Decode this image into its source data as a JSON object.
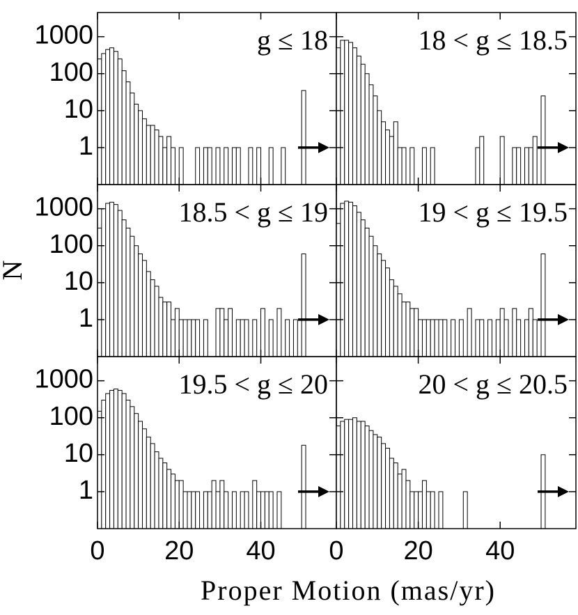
{
  "xlabel": "Proper Motion (mas/yr)",
  "ylabel": "N",
  "chart_data": [
    {
      "type": "histogram",
      "title": "g ≤ 18",
      "log_y": true,
      "color": "#ffffff",
      "bins": [
        0,
        1,
        2,
        3,
        4,
        5,
        6,
        7,
        8,
        9,
        10,
        11,
        12,
        13,
        14,
        15,
        16,
        17,
        18,
        19,
        20,
        21,
        22,
        23,
        24,
        25,
        26,
        27,
        28,
        29,
        30,
        31,
        32,
        33,
        34,
        35,
        36,
        37,
        38,
        39,
        40,
        41,
        42,
        43,
        44,
        45,
        46,
        47,
        48,
        49,
        50,
        51
      ],
      "values": [
        250,
        350,
        450,
        500,
        400,
        250,
        120,
        60,
        30,
        15,
        10,
        6,
        4,
        4,
        3,
        2,
        1,
        2,
        1,
        0,
        1,
        0,
        0,
        0,
        1,
        0,
        1,
        1,
        0,
        1,
        0,
        1,
        0,
        1,
        1,
        0,
        0,
        1,
        0,
        1,
        0,
        0,
        1,
        0,
        0,
        1,
        0,
        0,
        0,
        0,
        35
      ],
      "xlim": [
        0,
        58.5
      ],
      "ylim": [
        0.1,
        4500
      ],
      "xticks": [
        0,
        20,
        40
      ],
      "yticks": [
        1,
        10,
        100,
        1000
      ]
    },
    {
      "type": "histogram",
      "title": "18 < g ≤ 18.5",
      "log_y": true,
      "color": "#ffffff",
      "bins": [
        0,
        1,
        2,
        3,
        4,
        5,
        6,
        7,
        8,
        9,
        10,
        11,
        12,
        13,
        14,
        15,
        16,
        17,
        18,
        19,
        20,
        21,
        22,
        23,
        24,
        25,
        26,
        27,
        28,
        29,
        30,
        31,
        32,
        33,
        34,
        35,
        36,
        37,
        38,
        39,
        40,
        41,
        42,
        43,
        44,
        45,
        46,
        47,
        48,
        49,
        50,
        51
      ],
      "values": [
        500,
        800,
        800,
        700,
        500,
        300,
        180,
        100,
        50,
        25,
        10,
        5,
        3,
        2,
        5,
        1,
        1,
        0,
        1,
        0,
        0,
        1,
        0,
        1,
        0,
        0,
        0,
        0,
        0,
        0,
        0,
        0,
        0,
        0,
        1,
        2,
        0,
        0,
        0,
        0,
        2,
        0,
        0,
        1,
        1,
        0,
        1,
        1,
        2,
        0,
        25
      ],
      "xlim": [
        0,
        58.5
      ],
      "ylim": [
        0.1,
        4500
      ],
      "xticks": [
        0,
        20,
        40
      ],
      "yticks": [
        1,
        10,
        100,
        1000
      ]
    },
    {
      "type": "histogram",
      "title": "18.5 < g ≤ 19",
      "log_y": true,
      "color": "#ffffff",
      "bins": [
        0,
        1,
        2,
        3,
        4,
        5,
        6,
        7,
        8,
        9,
        10,
        11,
        12,
        13,
        14,
        15,
        16,
        17,
        18,
        19,
        20,
        21,
        22,
        23,
        24,
        25,
        26,
        27,
        28,
        29,
        30,
        31,
        32,
        33,
        34,
        35,
        36,
        37,
        38,
        39,
        40,
        41,
        42,
        43,
        44,
        45,
        46,
        47,
        48,
        49,
        50,
        51
      ],
      "values": [
        300,
        1000,
        1400,
        1500,
        1300,
        900,
        500,
        300,
        180,
        100,
        60,
        40,
        20,
        12,
        8,
        4,
        3,
        3,
        1,
        2,
        1,
        1,
        1,
        1,
        1,
        0,
        1,
        0,
        0,
        2,
        2,
        1,
        2,
        0,
        1,
        1,
        1,
        0,
        1,
        0,
        2,
        0,
        1,
        0,
        2,
        0,
        1,
        0,
        1,
        0,
        60
      ],
      "xlim": [
        0,
        58.5
      ],
      "ylim": [
        0.1,
        4500
      ],
      "xticks": [
        0,
        20,
        40
      ],
      "yticks": [
        1,
        10,
        100,
        1000
      ]
    },
    {
      "type": "histogram",
      "title": "19 < g ≤ 19.5",
      "log_y": true,
      "color": "#ffffff",
      "bins": [
        0,
        1,
        2,
        3,
        4,
        5,
        6,
        7,
        8,
        9,
        10,
        11,
        12,
        13,
        14,
        15,
        16,
        17,
        18,
        19,
        20,
        21,
        22,
        23,
        24,
        25,
        26,
        27,
        28,
        29,
        30,
        31,
        32,
        33,
        34,
        35,
        36,
        37,
        38,
        39,
        40,
        41,
        42,
        43,
        44,
        45,
        46,
        47,
        48,
        49,
        50,
        51
      ],
      "values": [
        400,
        1400,
        1600,
        1500,
        1200,
        800,
        500,
        300,
        180,
        100,
        60,
        40,
        25,
        12,
        8,
        5,
        3,
        3,
        2,
        2,
        1,
        1,
        1,
        1,
        1,
        1,
        1,
        0,
        1,
        0,
        1,
        0,
        2,
        0,
        1,
        1,
        0,
        1,
        0,
        1,
        2,
        1,
        0,
        2,
        1,
        0,
        1,
        2,
        1,
        0,
        60
      ],
      "xlim": [
        0,
        58.5
      ],
      "ylim": [
        0.1,
        4500
      ],
      "xticks": [
        0,
        20,
        40
      ],
      "yticks": [
        1,
        10,
        100,
        1000
      ]
    },
    {
      "type": "histogram",
      "title": "19.5 < g ≤ 20",
      "log_y": true,
      "color": "#ffffff",
      "bins": [
        0,
        1,
        2,
        3,
        4,
        5,
        6,
        7,
        8,
        9,
        10,
        11,
        12,
        13,
        14,
        15,
        16,
        17,
        18,
        19,
        20,
        21,
        22,
        23,
        24,
        25,
        26,
        27,
        28,
        29,
        30,
        31,
        32,
        33,
        34,
        35,
        36,
        37,
        38,
        39,
        40,
        41,
        42,
        43,
        44,
        45,
        46,
        47,
        48,
        49,
        50,
        51
      ],
      "values": [
        150,
        300,
        450,
        550,
        600,
        550,
        450,
        300,
        200,
        130,
        80,
        50,
        30,
        20,
        12,
        8,
        6,
        4,
        3,
        2,
        2,
        1,
        1,
        1,
        1,
        0,
        1,
        1,
        2,
        1,
        2,
        1,
        0,
        1,
        0,
        1,
        1,
        0,
        2,
        1,
        1,
        1,
        1,
        0,
        1,
        0,
        0,
        0,
        0,
        0,
        18
      ],
      "xlim": [
        0,
        58.5
      ],
      "ylim": [
        0.1,
        4500
      ],
      "xticks": [
        0,
        20,
        40
      ],
      "yticks": [
        1,
        10,
        100,
        1000
      ]
    },
    {
      "type": "histogram",
      "title": "20 < g ≤ 20.5",
      "log_y": true,
      "color": "#ffffff",
      "bins": [
        0,
        1,
        2,
        3,
        4,
        5,
        6,
        7,
        8,
        9,
        10,
        11,
        12,
        13,
        14,
        15,
        16,
        17,
        18,
        19,
        20,
        21,
        22,
        23,
        24,
        25,
        26,
        27,
        28,
        29,
        30,
        31,
        32,
        33,
        34,
        35,
        36,
        37,
        38,
        39,
        40,
        41,
        42,
        43,
        44,
        45,
        46,
        47,
        48,
        49,
        50,
        51
      ],
      "values": [
        60,
        80,
        90,
        90,
        100,
        80,
        80,
        60,
        45,
        35,
        30,
        20,
        15,
        8,
        6,
        3,
        4,
        2,
        1,
        1,
        1,
        2,
        1,
        1,
        0,
        1,
        0,
        0,
        0,
        0,
        0,
        1,
        0,
        0,
        0,
        0,
        0,
        0,
        0,
        0,
        0,
        0,
        0,
        0,
        0,
        0,
        0,
        0,
        0,
        0,
        10
      ],
      "xlim": [
        0,
        58.5
      ],
      "ylim": [
        0.1,
        4500
      ],
      "xticks": [
        0,
        20,
        40
      ],
      "yticks": [
        1,
        10,
        100,
        1000
      ]
    }
  ]
}
